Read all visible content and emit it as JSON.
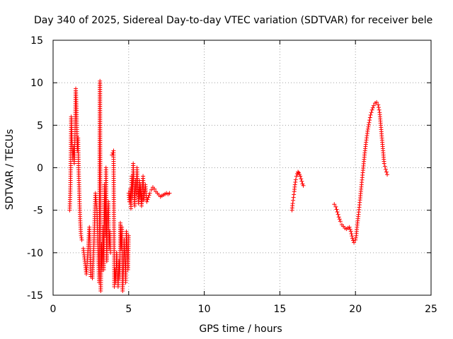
{
  "chart_data": {
    "type": "scatter",
    "title": "Day 340 of 2025, Sidereal Day-to-day VTEC variation (SDTVAR) for receiver bele",
    "xlabel": "GPS time / hours",
    "ylabel": "SDTVAR / TECUs",
    "xlim": [
      0,
      25
    ],
    "ylim": [
      -15,
      15
    ],
    "xticks": [
      0,
      5,
      10,
      15,
      20,
      25
    ],
    "yticks": [
      -15,
      -10,
      -5,
      0,
      5,
      10,
      15
    ],
    "xtick_labels": [
      "0",
      "5",
      "10",
      "15",
      "20",
      "25"
    ],
    "ytick_labels": [
      "-15",
      "-10",
      "-5",
      "0",
      "5",
      "10",
      "15"
    ],
    "grid": true,
    "marker": "+",
    "color": "#ff0000",
    "series": [
      {
        "name": "SDTVAR",
        "segments": [
          {
            "x": [
              1.1,
              1.15,
              1.2,
              1.25,
              1.3,
              1.35,
              1.4,
              1.45,
              1.5,
              1.55,
              1.6,
              1.65,
              1.7,
              1.75,
              1.8,
              1.85,
              1.9
            ],
            "y": [
              -5.0,
              -2.0,
              6.0,
              3.0,
              1.0,
              2.5,
              0.5,
              4.0,
              9.3,
              7.0,
              2.0,
              3.5,
              -1.0,
              -4.0,
              -6.5,
              -8.0,
              -8.5
            ]
          },
          {
            "x": [
              2.0,
              2.1,
              2.2,
              2.3,
              2.4,
              2.5,
              2.6,
              2.7,
              2.8,
              2.9,
              3.0,
              3.05,
              3.1,
              3.15,
              3.2,
              3.25,
              3.3,
              3.35,
              3.4,
              3.45,
              3.5,
              3.55,
              3.6,
              3.65,
              3.7,
              3.75,
              3.8
            ],
            "y": [
              -9.5,
              -11.0,
              -12.5,
              -10.0,
              -7.0,
              -12.8,
              -13.0,
              -9.0,
              -3.0,
              -5.0,
              -11.0,
              -13.5,
              10.2,
              -14.5,
              -9.0,
              -12.0,
              -7.0,
              -12.0,
              -2.0,
              -8.0,
              0.0,
              -11.0,
              -5.5,
              -4.0,
              -9.5,
              -7.5,
              -10.0
            ]
          },
          {
            "x": [
              3.9,
              4.0,
              4.05,
              4.1,
              4.15,
              4.2,
              4.25,
              4.3,
              4.35,
              4.4,
              4.45,
              4.5,
              4.55,
              4.6,
              4.65,
              4.7,
              4.75,
              4.8,
              4.85,
              4.9,
              4.95,
              5.0
            ],
            "y": [
              1.5,
              2.0,
              -14.0,
              -12.0,
              -13.5,
              -10.0,
              -12.5,
              -14.0,
              -11.0,
              -13.0,
              -6.5,
              -9.5,
              -7.0,
              -14.5,
              -12.0,
              -8.5,
              -10.5,
              -13.5,
              -7.5,
              -9.0,
              -12.0,
              -8.0
            ]
          },
          {
            "x": [
              5.0,
              5.05,
              5.1,
              5.15,
              5.2,
              5.25,
              5.3,
              5.35,
              5.4,
              5.45,
              5.5,
              5.55,
              5.6,
              5.65,
              5.7,
              5.75,
              5.8,
              5.85,
              5.9,
              5.95,
              6.0,
              6.1,
              6.2,
              6.3,
              6.4,
              6.5,
              6.6,
              6.7,
              6.8,
              6.9,
              7.0,
              7.1,
              7.2,
              7.3,
              7.4,
              7.5,
              7.6,
              7.7
            ],
            "y": [
              -3.0,
              -4.0,
              -2.5,
              -4.8,
              -1.0,
              -3.5,
              0.5,
              -2.0,
              -4.5,
              -1.5,
              -3.0,
              0.0,
              -2.5,
              -4.2,
              -1.5,
              -3.5,
              -2.0,
              -4.5,
              -2.8,
              -1.0,
              -3.8,
              -2.0,
              -4.0,
              -3.5,
              -3.0,
              -2.6,
              -2.3,
              -2.5,
              -2.8,
              -3.0,
              -3.2,
              -3.4,
              -3.3,
              -3.2,
              -3.1,
              -3.0,
              -3.1,
              -3.0
            ]
          },
          {
            "x": [
              15.8,
              15.85,
              15.9,
              15.95,
              16.0,
              16.05,
              16.1,
              16.15,
              16.2,
              16.25,
              16.3,
              16.35,
              16.4,
              16.45,
              16.5,
              16.55
            ],
            "y": [
              -5.0,
              -4.2,
              -3.5,
              -2.8,
              -2.0,
              -1.4,
              -1.0,
              -0.7,
              -0.5,
              -0.6,
              -0.8,
              -1.0,
              -1.3,
              -1.6,
              -1.9,
              -2.1
            ]
          },
          {
            "x": [
              18.6,
              18.7,
              18.8,
              18.9,
              19.0,
              19.1,
              19.2,
              19.3,
              19.4,
              19.5,
              19.6,
              19.7,
              19.8,
              19.9,
              20.0,
              20.05,
              20.1,
              20.2,
              20.3,
              20.4,
              20.5,
              20.6,
              20.7,
              20.8,
              20.9,
              21.0,
              21.1,
              21.2,
              21.3,
              21.4,
              21.5,
              21.6,
              21.7,
              21.8,
              21.9,
              22.0,
              22.1
            ],
            "y": [
              -4.3,
              -4.6,
              -5.2,
              -5.8,
              -6.3,
              -6.7,
              -6.9,
              -7.1,
              -7.2,
              -7.1,
              -7.0,
              -7.5,
              -8.3,
              -8.8,
              -8.5,
              -8.0,
              -7.0,
              -5.5,
              -3.8,
              -2.0,
              -0.3,
              1.5,
              3.0,
              4.3,
              5.3,
              6.2,
              6.8,
              7.3,
              7.6,
              7.7,
              7.4,
              6.5,
              4.5,
              2.5,
              0.5,
              -0.2,
              -0.8
            ]
          }
        ]
      }
    ]
  }
}
